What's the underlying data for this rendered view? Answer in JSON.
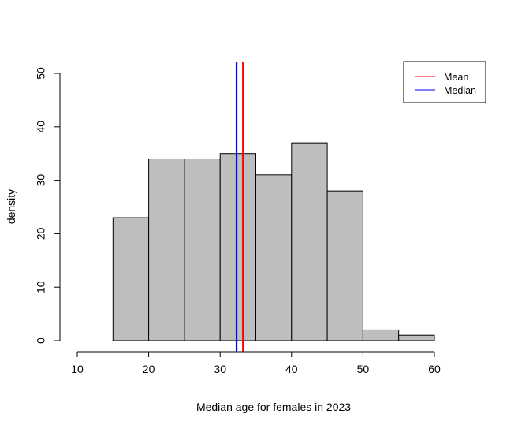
{
  "chart_data": {
    "type": "bar",
    "subtype": "histogram",
    "xlabel": "Median age for females in 2023",
    "ylabel": "density",
    "xlim": [
      10,
      60
    ],
    "ylim": [
      0,
      50
    ],
    "x_ticks": [
      "10",
      "20",
      "30",
      "40",
      "50",
      "60"
    ],
    "y_ticks": [
      "0",
      "10",
      "20",
      "30",
      "40",
      "50"
    ],
    "bins": [
      {
        "from": 15,
        "to": 20,
        "value": 23
      },
      {
        "from": 20,
        "to": 25,
        "value": 34
      },
      {
        "from": 25,
        "to": 30,
        "value": 34
      },
      {
        "from": 30,
        "to": 35,
        "value": 35
      },
      {
        "from": 35,
        "to": 40,
        "value": 31
      },
      {
        "from": 40,
        "to": 45,
        "value": 37
      },
      {
        "from": 45,
        "to": 50,
        "value": 28
      },
      {
        "from": 50,
        "to": 55,
        "value": 2
      },
      {
        "from": 55,
        "to": 60,
        "value": 1
      }
    ],
    "bar_color": "#bebebe",
    "reference_lines": [
      {
        "name": "Mean",
        "x": 33.2,
        "color": "#ff0000"
      },
      {
        "name": "Median",
        "x": 32.3,
        "color": "#0000ff"
      }
    ],
    "legend": {
      "position": "top-right",
      "entries": [
        {
          "label": "Mean",
          "color": "#ff0000"
        },
        {
          "label": "Median",
          "color": "#0000ff"
        }
      ]
    },
    "grid": false
  }
}
